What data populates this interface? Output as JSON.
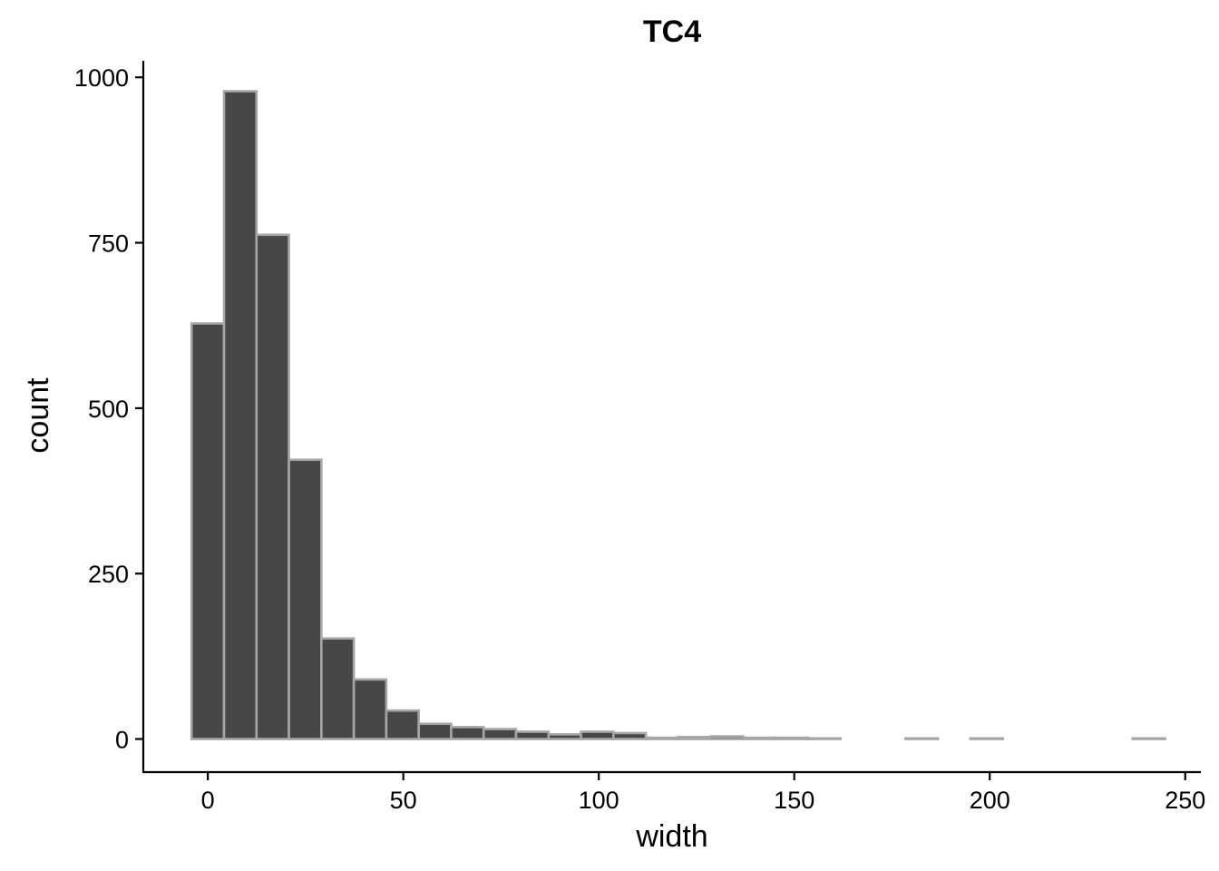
{
  "chart_data": {
    "type": "bar",
    "title": "TC4",
    "xlabel": "width",
    "ylabel": "count",
    "xlim": [
      -16.5,
      254
    ],
    "ylim": [
      -50,
      1025
    ],
    "x_ticks": [
      0,
      50,
      100,
      150,
      200,
      250
    ],
    "y_ticks": [
      0,
      250,
      500,
      750,
      1000
    ],
    "bin_width": 8.3,
    "bin_start": -4.15,
    "values": [
      628,
      979,
      762,
      422,
      152,
      90,
      43,
      23,
      18,
      15,
      11,
      7,
      11,
      9,
      2,
      3,
      4,
      2,
      2,
      1,
      0,
      0,
      1,
      0,
      1,
      0,
      0,
      0,
      0,
      1
    ],
    "colors": {
      "fill": "#474747",
      "edge": "#a6a6a6"
    },
    "grid": false
  }
}
